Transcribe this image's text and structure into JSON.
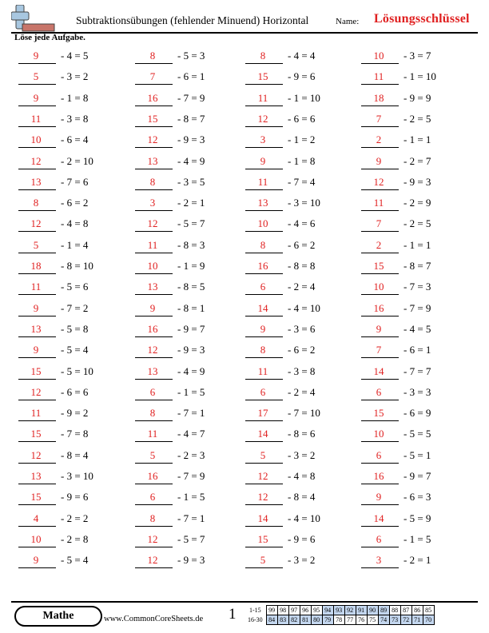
{
  "header": {
    "title": "Subtraktionsübungen (fehlender Minuend) Horizontal",
    "name_label": "Name:",
    "answer_key_label": "Lösungsschlüssel"
  },
  "instruction": "Löse jede Aufgabe.",
  "colors": {
    "answer": "#e02020",
    "score_highlight": "#c3d6ee",
    "logo": "#a8c7e0",
    "logo_bar": "#c8756a"
  },
  "problems": [
    [
      "9",
      "- 4 = 5"
    ],
    [
      "8",
      "- 5 = 3"
    ],
    [
      "8",
      "- 4 = 4"
    ],
    [
      "10",
      "- 3 = 7"
    ],
    [
      "5",
      "- 3 = 2"
    ],
    [
      "7",
      "- 6 = 1"
    ],
    [
      "15",
      "- 9 = 6"
    ],
    [
      "11",
      "- 1 = 10"
    ],
    [
      "9",
      "- 1 = 8"
    ],
    [
      "16",
      "- 7 = 9"
    ],
    [
      "11",
      "- 1 = 10"
    ],
    [
      "18",
      "- 9 = 9"
    ],
    [
      "11",
      "- 3 = 8"
    ],
    [
      "15",
      "- 8 = 7"
    ],
    [
      "12",
      "- 6 = 6"
    ],
    [
      "7",
      "- 2 = 5"
    ],
    [
      "10",
      "- 6 = 4"
    ],
    [
      "12",
      "- 9 = 3"
    ],
    [
      "3",
      "- 1 = 2"
    ],
    [
      "2",
      "- 1 = 1"
    ],
    [
      "12",
      "- 2 = 10"
    ],
    [
      "13",
      "- 4 = 9"
    ],
    [
      "9",
      "- 1 = 8"
    ],
    [
      "9",
      "- 2 = 7"
    ],
    [
      "13",
      "- 7 = 6"
    ],
    [
      "8",
      "- 3 = 5"
    ],
    [
      "11",
      "- 7 = 4"
    ],
    [
      "12",
      "- 9 = 3"
    ],
    [
      "8",
      "- 6 = 2"
    ],
    [
      "3",
      "- 2 = 1"
    ],
    [
      "13",
      "- 3 = 10"
    ],
    [
      "11",
      "- 2 = 9"
    ],
    [
      "12",
      "- 4 = 8"
    ],
    [
      "12",
      "- 5 = 7"
    ],
    [
      "10",
      "- 4 = 6"
    ],
    [
      "7",
      "- 2 = 5"
    ],
    [
      "5",
      "- 1 = 4"
    ],
    [
      "11",
      "- 8 = 3"
    ],
    [
      "8",
      "- 6 = 2"
    ],
    [
      "2",
      "- 1 = 1"
    ],
    [
      "18",
      "- 8 = 10"
    ],
    [
      "10",
      "- 1 = 9"
    ],
    [
      "16",
      "- 8 = 8"
    ],
    [
      "15",
      "- 8 = 7"
    ],
    [
      "11",
      "- 5 = 6"
    ],
    [
      "13",
      "- 8 = 5"
    ],
    [
      "6",
      "- 2 = 4"
    ],
    [
      "10",
      "- 7 = 3"
    ],
    [
      "9",
      "- 7 = 2"
    ],
    [
      "9",
      "- 8 = 1"
    ],
    [
      "14",
      "- 4 = 10"
    ],
    [
      "16",
      "- 7 = 9"
    ],
    [
      "13",
      "- 5 = 8"
    ],
    [
      "16",
      "- 9 = 7"
    ],
    [
      "9",
      "- 3 = 6"
    ],
    [
      "9",
      "- 4 = 5"
    ],
    [
      "9",
      "- 5 = 4"
    ],
    [
      "12",
      "- 9 = 3"
    ],
    [
      "8",
      "- 6 = 2"
    ],
    [
      "7",
      "- 6 = 1"
    ],
    [
      "15",
      "- 5 = 10"
    ],
    [
      "13",
      "- 4 = 9"
    ],
    [
      "11",
      "- 3 = 8"
    ],
    [
      "14",
      "- 7 = 7"
    ],
    [
      "12",
      "- 6 = 6"
    ],
    [
      "6",
      "- 1 = 5"
    ],
    [
      "6",
      "- 2 = 4"
    ],
    [
      "6",
      "- 3 = 3"
    ],
    [
      "11",
      "- 9 = 2"
    ],
    [
      "8",
      "- 7 = 1"
    ],
    [
      "17",
      "- 7 = 10"
    ],
    [
      "15",
      "- 6 = 9"
    ],
    [
      "15",
      "- 7 = 8"
    ],
    [
      "11",
      "- 4 = 7"
    ],
    [
      "14",
      "- 8 = 6"
    ],
    [
      "10",
      "- 5 = 5"
    ],
    [
      "12",
      "- 8 = 4"
    ],
    [
      "5",
      "- 2 = 3"
    ],
    [
      "5",
      "- 3 = 2"
    ],
    [
      "6",
      "- 5 = 1"
    ],
    [
      "13",
      "- 3 = 10"
    ],
    [
      "16",
      "- 7 = 9"
    ],
    [
      "12",
      "- 4 = 8"
    ],
    [
      "16",
      "- 9 = 7"
    ],
    [
      "15",
      "- 9 = 6"
    ],
    [
      "6",
      "- 1 = 5"
    ],
    [
      "12",
      "- 8 = 4"
    ],
    [
      "9",
      "- 6 = 3"
    ],
    [
      "4",
      "- 2 = 2"
    ],
    [
      "8",
      "- 7 = 1"
    ],
    [
      "14",
      "- 4 = 10"
    ],
    [
      "14",
      "- 5 = 9"
    ],
    [
      "10",
      "- 2 = 8"
    ],
    [
      "12",
      "- 5 = 7"
    ],
    [
      "15",
      "- 9 = 6"
    ],
    [
      "6",
      "- 1 = 5"
    ],
    [
      "9",
      "- 5 = 4"
    ],
    [
      "12",
      "- 9 = 3"
    ],
    [
      "5",
      "- 3 = 2"
    ],
    [
      "3",
      "- 2 = 1"
    ]
  ],
  "footer": {
    "subject": "Mathe",
    "site": "www.CommonCoreSheets.de",
    "page_number": "1",
    "score_rows": [
      {
        "label": "1-15",
        "cells": [
          "99",
          "98",
          "97",
          "96",
          "95",
          "94",
          "93",
          "92",
          "91",
          "90",
          "89",
          "88",
          "87",
          "86",
          "85"
        ]
      },
      {
        "label": "16-30",
        "cells": [
          "84",
          "83",
          "82",
          "81",
          "80",
          "79",
          "78",
          "77",
          "76",
          "75",
          "74",
          "73",
          "72",
          "71",
          "70"
        ]
      }
    ]
  }
}
